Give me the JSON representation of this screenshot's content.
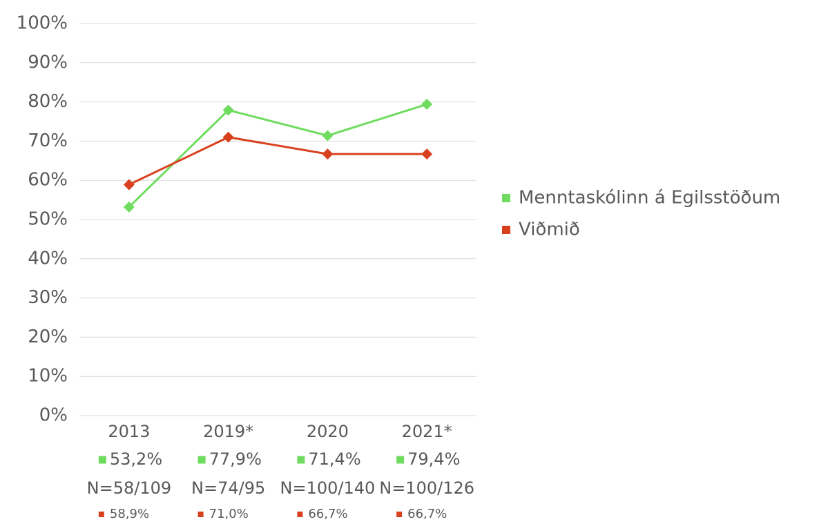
{
  "chart_data": {
    "type": "line",
    "categories": [
      "2013",
      "2019*",
      "2020",
      "2021*"
    ],
    "sample_sizes": [
      "N=58/109",
      "N=74/95",
      "N=100/140",
      "N=100/126"
    ],
    "series": [
      {
        "name": "Menntaskólinn á Egilsstöðum",
        "color": "#6fdc5f",
        "values": [
          53.2,
          77.9,
          71.4,
          79.4
        ],
        "value_labels": [
          "53,2%",
          "77,9%",
          "71,4%",
          "79,4%"
        ]
      },
      {
        "name": "Viðmið",
        "color": "#d9411e",
        "values": [
          58.9,
          71.0,
          66.7,
          66.7
        ],
        "value_labels": [
          "58,9%",
          "71,0%",
          "66,7%",
          "66,7%"
        ]
      }
    ],
    "ylim": [
      0,
      100
    ],
    "yticks": [
      {
        "value": 0,
        "label": "0%"
      },
      {
        "value": 10,
        "label": "10%"
      },
      {
        "value": 20,
        "label": "20%"
      },
      {
        "value": 30,
        "label": "30%"
      },
      {
        "value": 40,
        "label": "40%"
      },
      {
        "value": 50,
        "label": "50%"
      },
      {
        "value": 60,
        "label": "60%"
      },
      {
        "value": 70,
        "label": "70%"
      },
      {
        "value": 80,
        "label": "80%"
      },
      {
        "value": 90,
        "label": "90%"
      },
      {
        "value": 100,
        "label": "100%"
      }
    ],
    "grid": true,
    "legend": "right"
  }
}
